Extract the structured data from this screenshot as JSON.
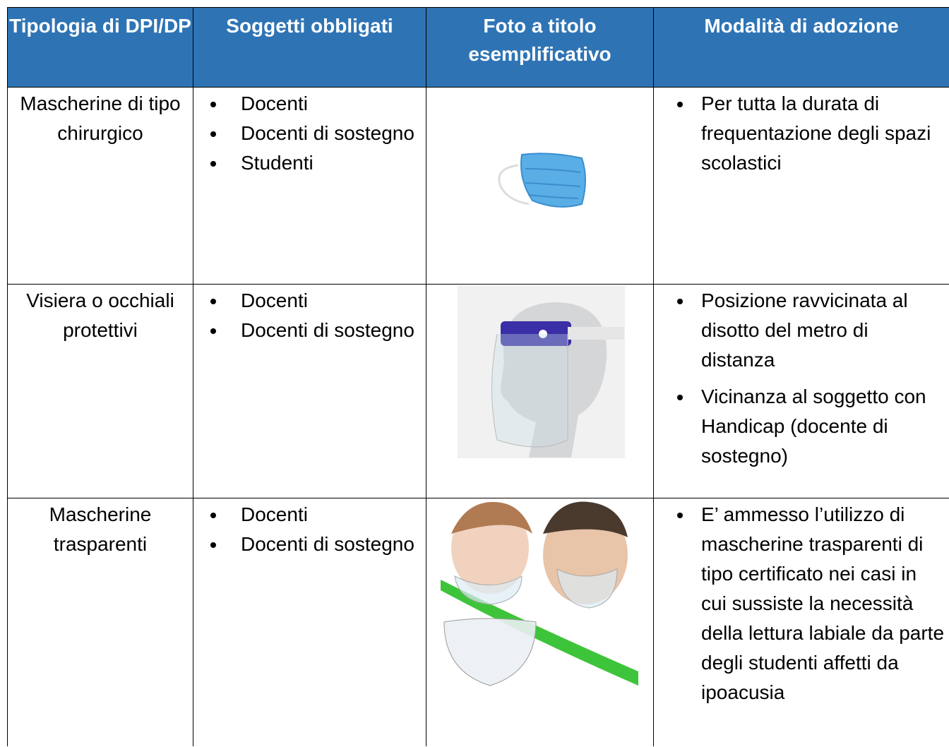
{
  "table": {
    "header": [
      "Tipologia di DPI/DP",
      "Soggetti obbligati",
      "Foto a titolo esemplificativo",
      "Modalità di adozione"
    ],
    "rows": [
      {
        "type": "Mascherine di tipo chirurgico",
        "subjects": [
          "Docenti",
          "Docenti di sostegno",
          "Studenti"
        ],
        "adoption": [
          "Per tutta la durata di frequentazione degli spazi scolastici"
        ]
      },
      {
        "type": "Visiera o occhiali protettivi",
        "subjects": [
          "Docenti",
          "Docenti di sostegno"
        ],
        "adoption": [
          "Posizione ravvicinata al disotto del metro di distanza",
          "Vicinanza al soggetto con Handicap (docente di sostegno)"
        ]
      },
      {
        "type": "Mascherine trasparenti",
        "subjects": [
          "Docenti",
          "Docenti di sostegno"
        ],
        "adoption": [
          "E’ ammesso l’utilizzo di mascherine trasparenti di tipo certificato nei casi in cui sussiste la necessità della lettura labiale da parte degli studenti affetti da ipoacusia"
        ]
      }
    ]
  }
}
